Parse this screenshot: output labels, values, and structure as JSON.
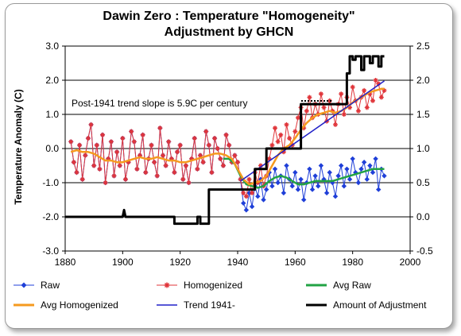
{
  "chart_data": {
    "type": "line",
    "title_line1": "Dawin Zero  :  Temperature \"Homogeneity\"",
    "title_line2": "Adjustment by GHCN",
    "ylabel": "Temperature Anomaly (C)",
    "xlim": [
      1880,
      2000
    ],
    "ylim": [
      -3.0,
      3.0
    ],
    "y2lim": [
      -0.5,
      2.5
    ],
    "x_ticks": [
      "1880",
      "1900",
      "1920",
      "1940",
      "1960",
      "1980",
      "2000"
    ],
    "y_ticks": [
      "-3.0",
      "-2.0",
      "-1.0",
      "0.0",
      "1.0",
      "2.0",
      "3.0"
    ],
    "y2_ticks": [
      "-0.5",
      "0.0",
      "0.5",
      "1.0",
      "1.5",
      "2.0",
      "2.5"
    ],
    "annotation": "Post-1941 trend slope is 5.9C per century",
    "colors": {
      "raw": "#1f3fd8",
      "homogenized": "#e0353a",
      "avg_raw": "#22a344",
      "avg_homogenized": "#f59a1f",
      "trend": "#2020c8",
      "adjustment": "#000000"
    },
    "legend_position": "bottom",
    "legend": [
      "Raw",
      "Homogenized",
      "Avg Raw",
      "Avg Homogenized",
      "Trend 1941-",
      "Amount of Adjustment"
    ],
    "series": [
      {
        "name": "Raw",
        "axis": "left",
        "x": [
          1882,
          1883,
          1884,
          1885,
          1886,
          1887,
          1888,
          1889,
          1890,
          1891,
          1892,
          1893,
          1894,
          1895,
          1896,
          1897,
          1898,
          1899,
          1900,
          1901,
          1902,
          1903,
          1904,
          1905,
          1906,
          1907,
          1908,
          1909,
          1910,
          1911,
          1912,
          1913,
          1914,
          1915,
          1916,
          1917,
          1918,
          1919,
          1920,
          1921,
          1922,
          1923,
          1924,
          1925,
          1926,
          1927,
          1928,
          1929,
          1930,
          1931,
          1932,
          1933,
          1934,
          1935,
          1936,
          1937,
          1938,
          1939,
          1940,
          1941,
          1942,
          1943,
          1944,
          1945,
          1946,
          1947,
          1948,
          1949,
          1950,
          1951,
          1952,
          1953,
          1954,
          1955,
          1956,
          1957,
          1958,
          1959,
          1960,
          1961,
          1962,
          1963,
          1964,
          1965,
          1966,
          1967,
          1968,
          1969,
          1970,
          1971,
          1972,
          1973,
          1974,
          1975,
          1976,
          1977,
          1978,
          1979,
          1980,
          1981,
          1982,
          1983,
          1984,
          1985,
          1986,
          1987,
          1988,
          1989,
          1990,
          1991
        ],
        "y": [
          0.2,
          -0.4,
          -0.7,
          0.1,
          -0.9,
          -0.2,
          0.3,
          0.7,
          -0.5,
          0.1,
          -0.6,
          0.4,
          -1.0,
          -0.3,
          0.2,
          -0.8,
          -0.1,
          -0.5,
          0.3,
          -0.9,
          -0.4,
          0.5,
          0.2,
          -0.6,
          -0.2,
          0.4,
          -0.7,
          -0.3,
          0.1,
          -0.4,
          -0.8,
          0.6,
          -0.2,
          -0.5,
          0.2,
          -0.3,
          -0.7,
          -0.1,
          0.1,
          -0.9,
          -0.5,
          -1.0,
          -0.3,
          0.3,
          -0.6,
          -0.2,
          -0.4,
          0.5,
          0.1,
          -0.7,
          0.3,
          0.0,
          -0.3,
          -0.5,
          0.4,
          0.1,
          -0.4,
          -0.2,
          -0.4,
          -0.9,
          -1.6,
          -1.8,
          -1.3,
          -1.7,
          -1.1,
          -1.4,
          -0.9,
          -1.5,
          -1.2,
          -0.7,
          -1.1,
          -0.6,
          -1.0,
          -0.8,
          -1.3,
          -0.5,
          -0.9,
          -1.1,
          -0.7,
          -1.2,
          -0.9,
          -1.5,
          -1.0,
          -0.6,
          -1.2,
          -0.8,
          -1.1,
          -0.5,
          -0.9,
          -1.3,
          -0.7,
          -1.0,
          -1.4,
          -0.8,
          -0.5,
          -1.1,
          -0.6,
          -0.9,
          -0.3,
          -0.7,
          -1.0,
          -0.6,
          -0.4,
          -0.9,
          -0.5,
          -0.7,
          -0.3,
          -1.2,
          -0.6,
          -0.8
        ]
      },
      {
        "name": "Homogenized",
        "axis": "left",
        "x": [
          1882,
          1883,
          1884,
          1885,
          1886,
          1887,
          1888,
          1889,
          1890,
          1891,
          1892,
          1893,
          1894,
          1895,
          1896,
          1897,
          1898,
          1899,
          1900,
          1901,
          1902,
          1903,
          1904,
          1905,
          1906,
          1907,
          1908,
          1909,
          1910,
          1911,
          1912,
          1913,
          1914,
          1915,
          1916,
          1917,
          1918,
          1919,
          1920,
          1921,
          1922,
          1923,
          1924,
          1925,
          1926,
          1927,
          1928,
          1929,
          1930,
          1931,
          1932,
          1933,
          1934,
          1935,
          1936,
          1937,
          1938,
          1939,
          1940,
          1941,
          1942,
          1943,
          1944,
          1945,
          1946,
          1947,
          1948,
          1949,
          1950,
          1951,
          1952,
          1953,
          1954,
          1955,
          1956,
          1957,
          1958,
          1959,
          1960,
          1961,
          1962,
          1963,
          1964,
          1965,
          1966,
          1967,
          1968,
          1969,
          1970,
          1971,
          1972,
          1973,
          1974,
          1975,
          1976,
          1977,
          1978,
          1979,
          1980,
          1981,
          1982,
          1983,
          1984,
          1985,
          1986,
          1987,
          1988,
          1989,
          1990,
          1991
        ],
        "y": [
          0.2,
          -0.4,
          -0.7,
          0.1,
          -0.9,
          -0.2,
          0.3,
          0.7,
          -0.5,
          0.1,
          -0.6,
          0.4,
          -1.0,
          -0.3,
          0.2,
          -0.8,
          -0.1,
          -0.5,
          0.3,
          -0.9,
          -0.4,
          0.5,
          0.2,
          -0.6,
          -0.2,
          0.4,
          -0.7,
          -0.3,
          0.1,
          -0.4,
          -0.8,
          0.6,
          -0.2,
          -0.5,
          0.2,
          -0.3,
          -0.7,
          -0.1,
          0.1,
          -0.9,
          -0.5,
          -1.0,
          -0.3,
          0.3,
          -0.6,
          -0.2,
          -0.4,
          0.5,
          0.1,
          -0.7,
          0.3,
          0.0,
          -0.3,
          -0.5,
          0.4,
          0.1,
          -0.4,
          -0.2,
          -0.4,
          -0.9,
          -1.3,
          -1.4,
          -0.9,
          -1.3,
          -0.7,
          -1.0,
          -0.5,
          -1.1,
          -0.8,
          -0.3,
          0.1,
          0.6,
          0.2,
          0.4,
          -0.1,
          0.7,
          0.3,
          0.1,
          0.5,
          0.9,
          1.2,
          0.6,
          1.1,
          1.5,
          0.9,
          1.3,
          1.0,
          1.6,
          1.2,
          0.8,
          1.4,
          1.1,
          0.7,
          1.3,
          1.6,
          1.0,
          1.5,
          1.2,
          1.8,
          1.4,
          1.1,
          1.5,
          1.7,
          1.2,
          1.6,
          1.4,
          2.0,
          1.9,
          1.5,
          1.7
        ]
      },
      {
        "name": "Avg Raw",
        "axis": "left",
        "x": [
          1935,
          1937,
          1939,
          1941,
          1943,
          1945,
          1947,
          1949,
          1951,
          1953,
          1955,
          1957,
          1959,
          1961,
          1963,
          1965,
          1967,
          1969,
          1971,
          1973,
          1975,
          1977,
          1979,
          1981,
          1983,
          1985,
          1987,
          1989,
          1991
        ],
        "y": [
          -0.3,
          -0.3,
          -0.45,
          -0.8,
          -1.05,
          -1.1,
          -1.15,
          -1.1,
          -0.95,
          -0.85,
          -0.8,
          -0.85,
          -0.95,
          -1.05,
          -1.05,
          -1.0,
          -0.95,
          -0.95,
          -0.95,
          -0.95,
          -0.9,
          -0.85,
          -0.8,
          -0.75,
          -0.7,
          -0.65,
          -0.6,
          -0.6,
          -0.6
        ]
      },
      {
        "name": "Avg Homogenized",
        "axis": "left",
        "x": [
          1882,
          1884,
          1886,
          1888,
          1890,
          1892,
          1894,
          1896,
          1898,
          1900,
          1902,
          1904,
          1906,
          1908,
          1910,
          1912,
          1914,
          1916,
          1918,
          1920,
          1922,
          1924,
          1926,
          1928,
          1930,
          1932,
          1934,
          1936,
          1938,
          1940,
          1942,
          1944,
          1946,
          1948,
          1950,
          1952,
          1954,
          1956,
          1958,
          1960,
          1962,
          1964,
          1966,
          1968,
          1970,
          1972,
          1974,
          1976,
          1978,
          1980,
          1982,
          1984,
          1986,
          1988,
          1990,
          1991
        ],
        "y": [
          -0.1,
          -0.05,
          -0.1,
          -0.1,
          -0.15,
          -0.25,
          -0.35,
          -0.35,
          -0.4,
          -0.4,
          -0.35,
          -0.3,
          -0.25,
          -0.3,
          -0.3,
          -0.25,
          -0.3,
          -0.35,
          -0.35,
          -0.4,
          -0.4,
          -0.35,
          -0.3,
          -0.25,
          -0.2,
          -0.15,
          -0.15,
          -0.2,
          -0.3,
          -0.6,
          -0.9,
          -1.05,
          -1.0,
          -0.95,
          -0.8,
          -0.5,
          -0.2,
          0.0,
          0.1,
          0.3,
          0.55,
          0.75,
          0.9,
          1.0,
          1.05,
          1.1,
          1.05,
          1.1,
          1.2,
          1.35,
          1.45,
          1.55,
          1.65,
          1.7,
          1.75,
          1.75
        ]
      },
      {
        "name": "Trend 1941-",
        "axis": "left",
        "x": [
          1941,
          1991
        ],
        "y": [
          -0.95,
          1.98
        ]
      },
      {
        "name": "Amount of Adjustment",
        "axis": "right",
        "x": [
          1880,
          1900,
          1900.5,
          1901,
          1901.5,
          1902,
          1918,
          1918,
          1926,
          1926,
          1927,
          1927,
          1930,
          1930,
          1940,
          1940,
          1946,
          1946,
          1950,
          1950,
          1951,
          1951,
          1962,
          1962,
          1978,
          1978,
          1979,
          1979,
          1980,
          1980,
          1981,
          1981,
          1983,
          1983,
          1984,
          1984,
          1986,
          1986,
          1987,
          1987,
          1989,
          1989,
          1990,
          1990,
          1991
        ],
        "y": [
          0.0,
          0.0,
          0.1,
          0.0,
          0.0,
          0.0,
          0.0,
          -0.1,
          -0.1,
          0.0,
          0.0,
          -0.1,
          -0.1,
          0.4,
          0.4,
          0.4,
          0.4,
          0.7,
          0.7,
          1.0,
          1.0,
          1.0,
          1.0,
          1.65,
          1.65,
          2.1,
          2.1,
          2.35,
          2.35,
          2.3,
          2.3,
          2.35,
          2.35,
          2.15,
          2.15,
          2.35,
          2.35,
          2.25,
          2.25,
          2.35,
          2.35,
          2.2,
          2.2,
          2.35,
          2.35
        ]
      }
    ]
  }
}
